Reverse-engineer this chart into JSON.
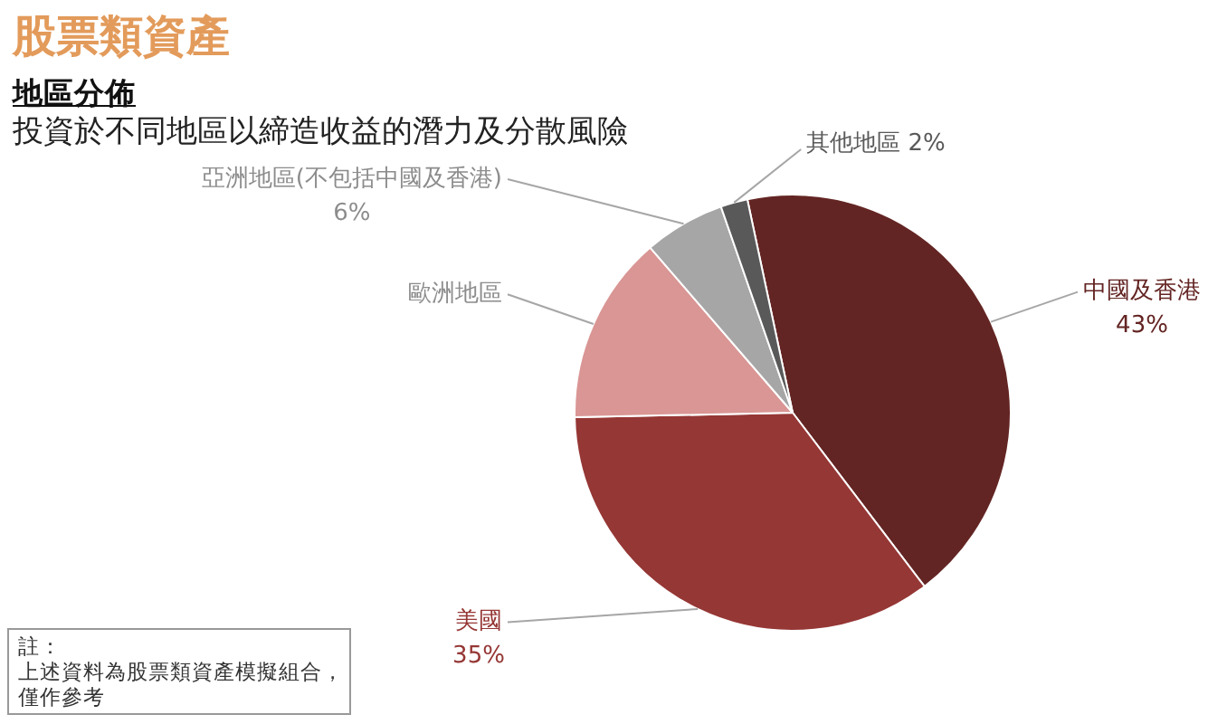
{
  "chart_data": {
    "type": "pie",
    "title": "股票類資產",
    "subtitle": "地區分佈",
    "annotations": [
      "投資於不同地區以締造收益的潛力及分散風險",
      "註：",
      "上述資料為股票類資產模擬組合，僅作參考"
    ],
    "categories": [
      "中國及香港",
      "美國",
      "歐洲地區",
      "亞洲地區(不包括中國及香港)",
      "其他地區"
    ],
    "values": [
      43,
      35,
      14,
      6,
      2
    ],
    "colors": [
      "#632523",
      "#953735",
      "#d99694",
      "#a6a6a6",
      "#595959"
    ],
    "value_labels": [
      "43%",
      "35%",
      null,
      "6%",
      "2%"
    ]
  }
}
